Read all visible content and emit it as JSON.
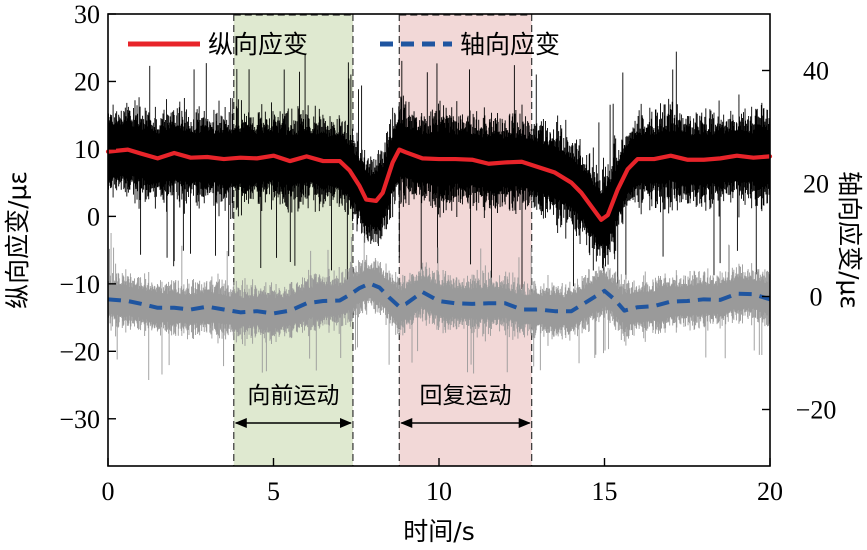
{
  "chart_data": {
    "type": "line",
    "xlabel": "时间/s",
    "ylabel_left": "纵向应变/με",
    "ylabel_right": "轴向应变/με",
    "xlim": [
      0,
      20
    ],
    "ylim_left": [
      -37,
      30
    ],
    "ylim_right": [
      -30,
      50
    ],
    "xticks": [
      0,
      5,
      10,
      15,
      20
    ],
    "yticks_left": [
      30,
      20,
      10,
      0,
      -10,
      -20,
      -30
    ],
    "yticks_right": [
      40,
      20,
      0,
      -20
    ],
    "legend_position": "top",
    "series": [
      {
        "name": "纵向应变",
        "axis": "left",
        "color": "#e8242a",
        "style": "solid",
        "x": [
          0,
          0.6,
          1,
          1.5,
          2,
          2.5,
          3,
          3.5,
          4,
          4.5,
          5,
          5.5,
          6,
          6.5,
          7,
          7.3,
          7.6,
          7.8,
          8.1,
          8.3,
          8.6,
          8.8,
          9,
          9.5,
          10,
          10.5,
          11,
          11.5,
          12,
          12.5,
          13,
          13.5,
          14,
          14.3,
          14.6,
          14.9,
          15.1,
          15.4,
          15.7,
          16,
          16.5,
          17,
          17.5,
          18,
          18.5,
          19,
          19.5,
          20
        ],
        "y": [
          9.6,
          9.9,
          9.3,
          8.6,
          9.4,
          8.7,
          8.8,
          8.5,
          8.7,
          8.6,
          9.0,
          8.2,
          8.9,
          8.2,
          8.2,
          6.8,
          4.5,
          2.5,
          2.3,
          3.5,
          8.0,
          9.9,
          9.5,
          8.6,
          8.5,
          8.5,
          8.4,
          7.8,
          8.0,
          8.1,
          7.3,
          6.5,
          5.0,
          3.5,
          1.5,
          -0.5,
          0.2,
          4.0,
          7.0,
          8.5,
          8.5,
          9.0,
          8.4,
          8.4,
          8.6,
          9.0,
          8.7,
          8.9
        ]
      },
      {
        "name": "轴向应变",
        "axis": "right",
        "color": "#1f55a0",
        "style": "dashed",
        "x": [
          0,
          0.6,
          1,
          1.5,
          2,
          2.5,
          3,
          3.5,
          4,
          4.5,
          5,
          5.5,
          6,
          6.5,
          7,
          7.3,
          7.6,
          7.9,
          8.2,
          8.5,
          8.8,
          9,
          9.5,
          10,
          10.5,
          11,
          11.5,
          12,
          12.5,
          13,
          13.5,
          14,
          14.5,
          15,
          15.3,
          15.6,
          16,
          16.5,
          17,
          17.5,
          18,
          18.5,
          19,
          19.5,
          20
        ],
        "y": [
          -0.5,
          -0.8,
          -1.3,
          -2.0,
          -2.0,
          -2.3,
          -1.8,
          -2.3,
          -2.8,
          -2.6,
          -3.0,
          -2.5,
          -1.2,
          -0.8,
          -0.7,
          0.3,
          1.5,
          2.3,
          1.6,
          -0.2,
          -1.8,
          -1.3,
          0.8,
          -0.8,
          -1.2,
          -1.3,
          -1.2,
          -1.2,
          -2.3,
          -2.3,
          -2.6,
          -2.6,
          -0.8,
          1.0,
          -0.5,
          -2.5,
          -1.9,
          -1.7,
          -0.9,
          -0.8,
          -0.5,
          -0.6,
          0.5,
          0.4,
          -0.5
        ]
      }
    ],
    "noise_bands": [
      {
        "axis": "left",
        "color": "#000000",
        "around": "纵向应变",
        "amplitude": 6.5
      },
      {
        "axis": "right",
        "color": "#9a9a9a",
        "around": "轴向应变",
        "amplitude": 4.5
      }
    ],
    "shaded_regions": [
      {
        "x0": 3.8,
        "x1": 7.4,
        "color": "#dfe9d0",
        "label": "向前运动"
      },
      {
        "x0": 8.8,
        "x1": 12.8,
        "color": "#f2d8d7",
        "label": "回复运动"
      }
    ]
  }
}
